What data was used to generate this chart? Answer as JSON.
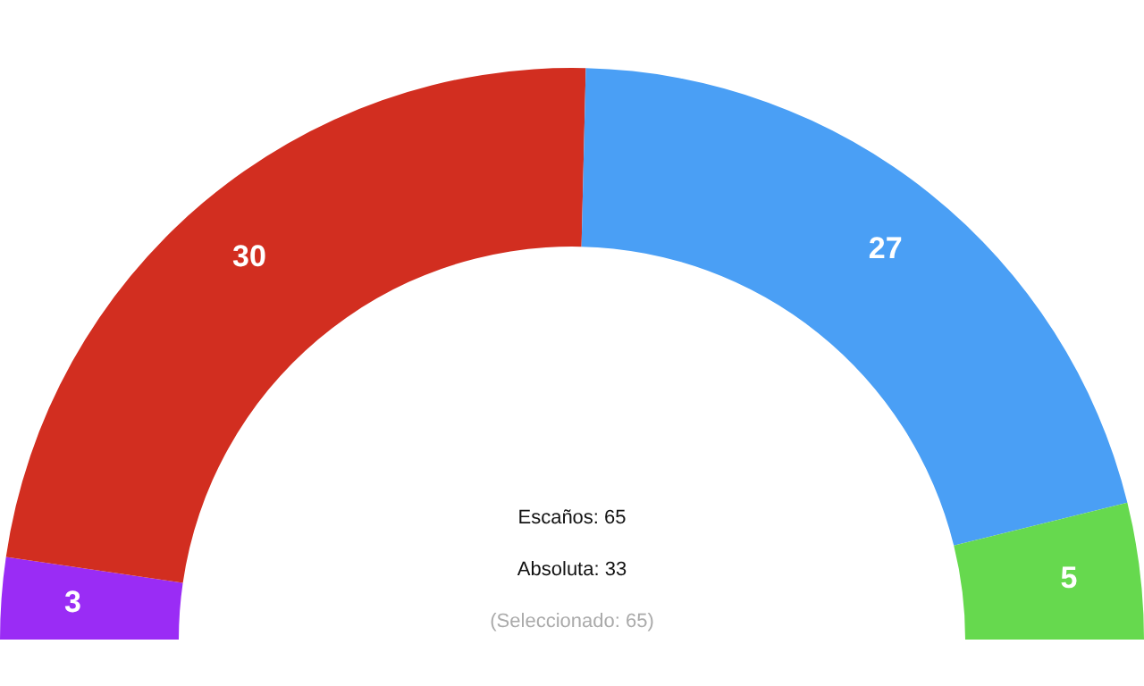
{
  "chart_data": {
    "type": "donut",
    "categories": [
      null,
      null,
      null,
      null
    ],
    "values": [
      3,
      30,
      27,
      5
    ],
    "colors": [
      "#9a2cf5",
      "#d22e20",
      "#4a9ff5",
      "#66d94e"
    ],
    "data_labels": true,
    "annotations": [
      "Escaños: 65",
      "Absoluta: 33",
      "(Seleccionado: 65)"
    ]
  }
}
